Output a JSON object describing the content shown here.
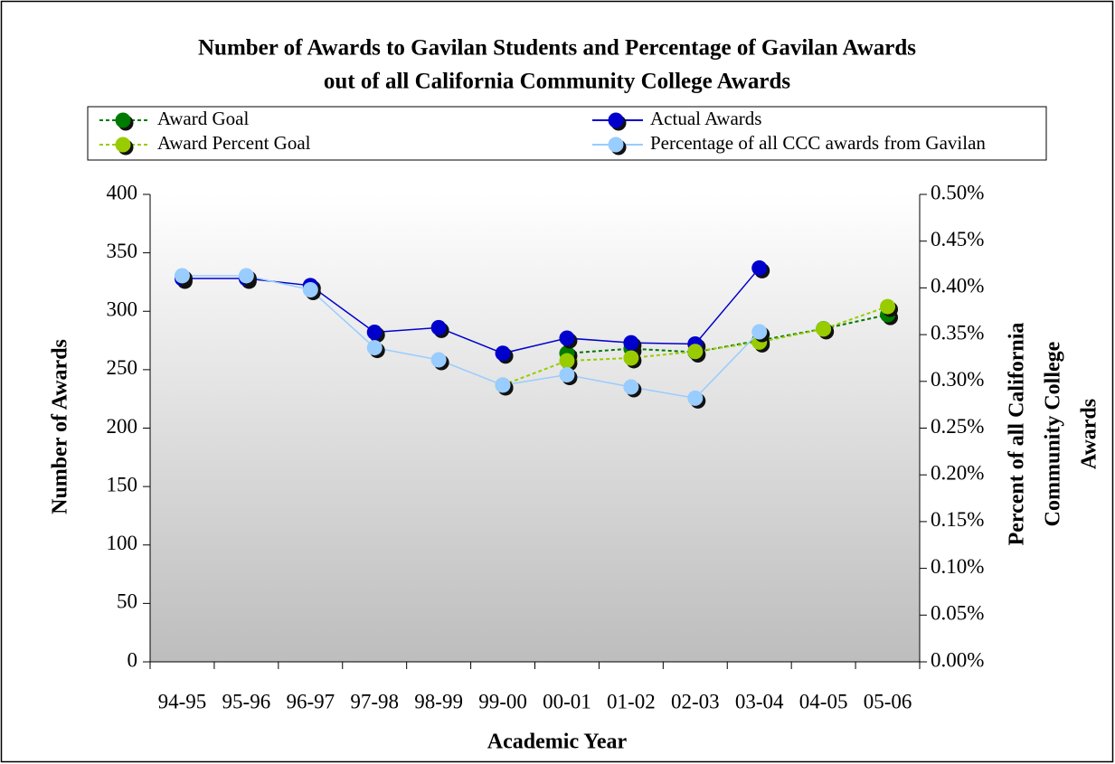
{
  "chart_data": {
    "type": "line",
    "title": [
      "Number of Awards to Gavilan Students and Percentage of Gavilan Awards",
      "out of all California Community College Awards"
    ],
    "x_label": "Academic Year",
    "y_label": "Number of Awards",
    "y2_label": [
      "Percent of all California",
      "Community College",
      "Awards"
    ],
    "categories": [
      "94-95",
      "95-96",
      "96-97",
      "97-98",
      "98-99",
      "99-00",
      "00-01",
      "01-02",
      "02-03",
      "03-04",
      "04-05",
      "05-06"
    ],
    "ylim": [
      0,
      400
    ],
    "yticks": [
      0,
      50,
      100,
      150,
      200,
      250,
      300,
      350,
      400
    ],
    "y2lim": [
      0,
      0.5
    ],
    "y2ticks": [
      {
        "value": 0,
        "label": "0.00%"
      },
      {
        "value": 0.05,
        "label": "0.05%"
      },
      {
        "value": 0.1,
        "label": "0.10%"
      },
      {
        "value": 0.15,
        "label": "0.15%"
      },
      {
        "value": 0.2,
        "label": "0.20%"
      },
      {
        "value": 0.25,
        "label": "0.25%"
      },
      {
        "value": 0.3,
        "label": "0.30%"
      },
      {
        "value": 0.35,
        "label": "0.35%"
      },
      {
        "value": 0.4,
        "label": "0.40%"
      },
      {
        "value": 0.45,
        "label": "0.45%"
      },
      {
        "value": 0.5,
        "label": "0.50%"
      }
    ],
    "series": [
      {
        "name": "Award Goal",
        "color": "#007a00",
        "dash": true,
        "values": [
          null,
          null,
          null,
          null,
          null,
          null,
          264,
          268,
          265,
          275,
          285,
          297
        ]
      },
      {
        "name": "Actual Awards",
        "color": "#0000cc",
        "dash": false,
        "values": [
          328,
          328,
          322,
          282,
          286,
          264,
          277,
          273,
          272,
          337,
          null,
          null
        ]
      },
      {
        "name": "Award Percent Goal",
        "color": "#99cc00",
        "dash": true,
        "axis": "y2",
        "values": [
          null,
          null,
          null,
          null,
          null,
          0.296,
          0.322,
          0.325,
          0.332,
          0.342,
          0.356,
          0.38
        ]
      },
      {
        "name": "Percentage of all CCC awards from Gavilan",
        "color": "#99ccff",
        "dash": false,
        "axis": "y2",
        "values": [
          0.413,
          0.413,
          0.398,
          0.336,
          0.323,
          0.296,
          0.307,
          0.294,
          0.282,
          0.353,
          null,
          null
        ]
      }
    ]
  }
}
